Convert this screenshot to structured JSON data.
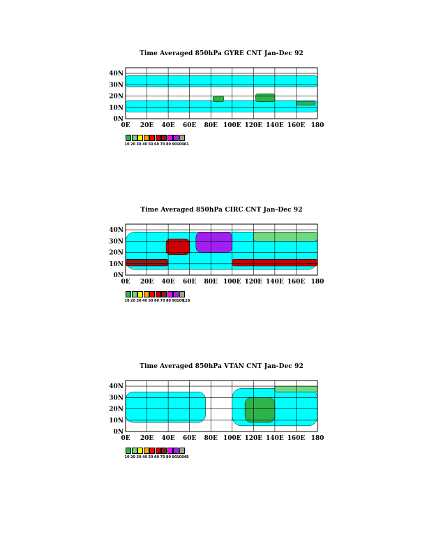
{
  "chart_data": [
    {
      "type": "heatmap",
      "title": "Time Averaged 850hPa GYRE CNT Jan-Dec 92",
      "xlabel": "",
      "ylabel": "",
      "x_ticks": [
        "0E",
        "20E",
        "40E",
        "60E",
        "80E",
        "100E",
        "120E",
        "140E",
        "160E",
        "180"
      ],
      "y_ticks": [
        "0N",
        "10N",
        "20N",
        "30N",
        "40N"
      ],
      "xlim": [
        0,
        180
      ],
      "ylim": [
        0,
        45
      ],
      "grid": true,
      "legend": {
        "placement": "bottom-left",
        "colors": [
          "#2db34a",
          "#6fd97f",
          "#ffff00",
          "#ffa500",
          "#ff0000",
          "#cc0000",
          "#8b1a1a",
          "#ff00ff",
          "#a020f0",
          "#9e9e9e"
        ],
        "labels": [
          "10",
          "20",
          "30",
          "40",
          "50",
          "60",
          "70",
          "80",
          "90",
          "100",
          "A1"
        ]
      },
      "fill_color": "#00ffff",
      "regions": [
        {
          "name": "lower cyan band",
          "level": "cyan",
          "lon": [
            0,
            180
          ],
          "lat": [
            6,
            16
          ]
        },
        {
          "name": "upper cyan band",
          "level": "cyan",
          "lon": [
            0,
            180
          ],
          "lat": [
            28,
            38
          ]
        },
        {
          "name": "green patch west pacific",
          "level": "10",
          "lon": [
            122,
            140
          ],
          "lat": [
            15,
            22
          ]
        },
        {
          "name": "green patch south china sea",
          "level": "10",
          "lon": [
            82,
            92
          ],
          "lat": [
            15,
            20
          ]
        },
        {
          "name": "green patch central pacific",
          "level": "10",
          "lon": [
            160,
            178
          ],
          "lat": [
            12,
            15
          ]
        }
      ]
    },
    {
      "type": "heatmap",
      "title": "Time Averaged 850hPa CIRC CNT Jan-Dec 92",
      "xlabel": "",
      "ylabel": "",
      "x_ticks": [
        "0E",
        "20E",
        "40E",
        "60E",
        "80E",
        "100E",
        "120E",
        "140E",
        "160E",
        "180"
      ],
      "y_ticks": [
        "0N",
        "10N",
        "20N",
        "30N",
        "40N"
      ],
      "xlim": [
        0,
        180
      ],
      "ylim": [
        0,
        45
      ],
      "grid": true,
      "legend": {
        "placement": "bottom-left",
        "colors": [
          "#2db34a",
          "#6fd97f",
          "#ffff00",
          "#ffa500",
          "#ff0000",
          "#cc0000",
          "#8b1a1a",
          "#ff00ff",
          "#a020f0",
          "#9e9e9e"
        ],
        "labels": [
          "10",
          "20",
          "30",
          "40",
          "50",
          "60",
          "70",
          "80",
          "90",
          "100",
          "128"
        ]
      },
      "fill_color": "#00ffff",
      "regions": [
        {
          "name": "broad cyan band",
          "level": "cyan",
          "lon": [
            0,
            180
          ],
          "lat": [
            5,
            38
          ]
        },
        {
          "name": "tibet maximum",
          "level": "90",
          "lon": [
            66,
            100
          ],
          "lat": [
            20,
            38
          ]
        },
        {
          "name": "arabia maximum",
          "level": "60",
          "lon": [
            38,
            60
          ],
          "lat": [
            18,
            32
          ]
        },
        {
          "name": "african jet",
          "level": "70",
          "lon": [
            0,
            40
          ],
          "lat": [
            8,
            14
          ]
        },
        {
          "name": "pacific jet",
          "level": "20",
          "lon": [
            120,
            180
          ],
          "lat": [
            30,
            38
          ]
        },
        {
          "name": "tropical pacific band",
          "level": "60",
          "lon": [
            100,
            180
          ],
          "lat": [
            8,
            14
          ]
        }
      ]
    },
    {
      "type": "heatmap",
      "title": "Time Averaged 850hPa VTAN CNT Jan-Dec 92",
      "xlabel": "",
      "ylabel": "",
      "x_ticks": [
        "0E",
        "20E",
        "40E",
        "60E",
        "80E",
        "100E",
        "120E",
        "140E",
        "160E",
        "180"
      ],
      "y_ticks": [
        "0N",
        "10N",
        "20N",
        "30N",
        "40N"
      ],
      "xlim": [
        0,
        180
      ],
      "ylim": [
        0,
        45
      ],
      "grid": true,
      "legend": {
        "placement": "bottom-left",
        "colors": [
          "#2db34a",
          "#6fd97f",
          "#ffff00",
          "#ffa500",
          "#ff0000",
          "#cc0000",
          "#8b1a1a",
          "#ff00ff",
          "#a020f0",
          "#9e9e9e"
        ],
        "labels": [
          "10",
          "20",
          "30",
          "40",
          "50",
          "60",
          "70",
          "80",
          "90",
          "100",
          "48"
        ]
      },
      "fill_color": "#00ffff",
      "regions": [
        {
          "name": "atlantic-africa cyan",
          "level": "cyan",
          "lon": [
            0,
            75
          ],
          "lat": [
            8,
            35
          ]
        },
        {
          "name": "west pacific cyan",
          "level": "cyan",
          "lon": [
            100,
            180
          ],
          "lat": [
            5,
            38
          ]
        },
        {
          "name": "pacific green maximum",
          "level": "10",
          "lon": [
            112,
            140
          ],
          "lat": [
            8,
            30
          ]
        },
        {
          "name": "pacific jet",
          "level": "20",
          "lon": [
            140,
            180
          ],
          "lat": [
            35,
            40
          ]
        }
      ]
    }
  ]
}
